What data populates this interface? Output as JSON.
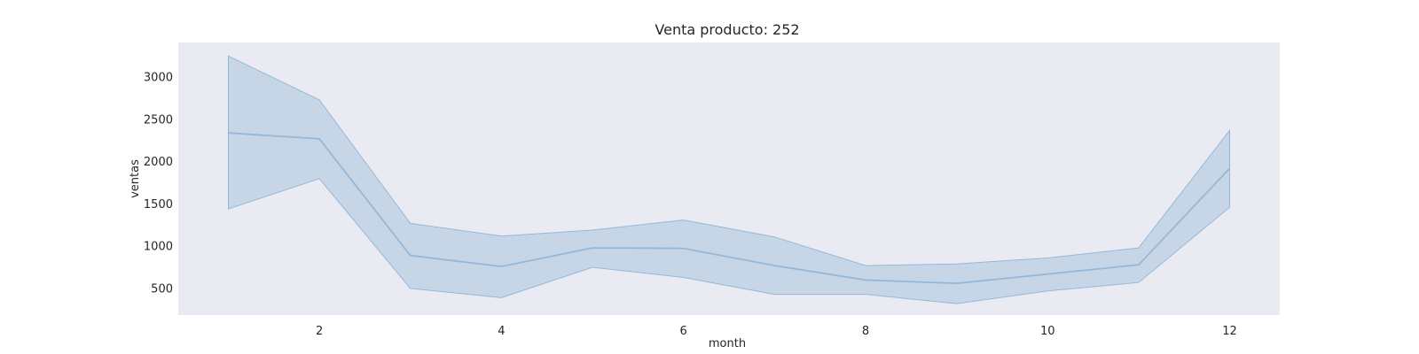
{
  "chart_data": {
    "type": "line",
    "title": "Venta producto: 252",
    "xlabel": "month",
    "ylabel": "ventas",
    "x": [
      1,
      2,
      3,
      4,
      5,
      6,
      7,
      8,
      9,
      10,
      11,
      12
    ],
    "series": [
      {
        "values": [
          2350,
          2280,
          900,
          770,
          990,
          985,
          780,
          610,
          570,
          680,
          790,
          1930
        ],
        "lower": [
          1450,
          1810,
          510,
          400,
          760,
          640,
          440,
          440,
          330,
          480,
          580,
          1470
        ],
        "upper": [
          3260,
          2740,
          1280,
          1130,
          1200,
          1320,
          1120,
          780,
          800,
          870,
          990,
          2380
        ]
      }
    ],
    "xticks": [
      2,
      4,
      6,
      8,
      10,
      12
    ],
    "yticks": [
      500,
      1000,
      1500,
      2000,
      2500,
      3000
    ],
    "xlim": [
      0.45,
      12.55
    ],
    "ylim": [
      195,
      3420
    ],
    "grid": false,
    "colors": {
      "line": "#95b8d9",
      "band": "#a9c4df",
      "plot_bg": "#eaeaf2"
    }
  }
}
